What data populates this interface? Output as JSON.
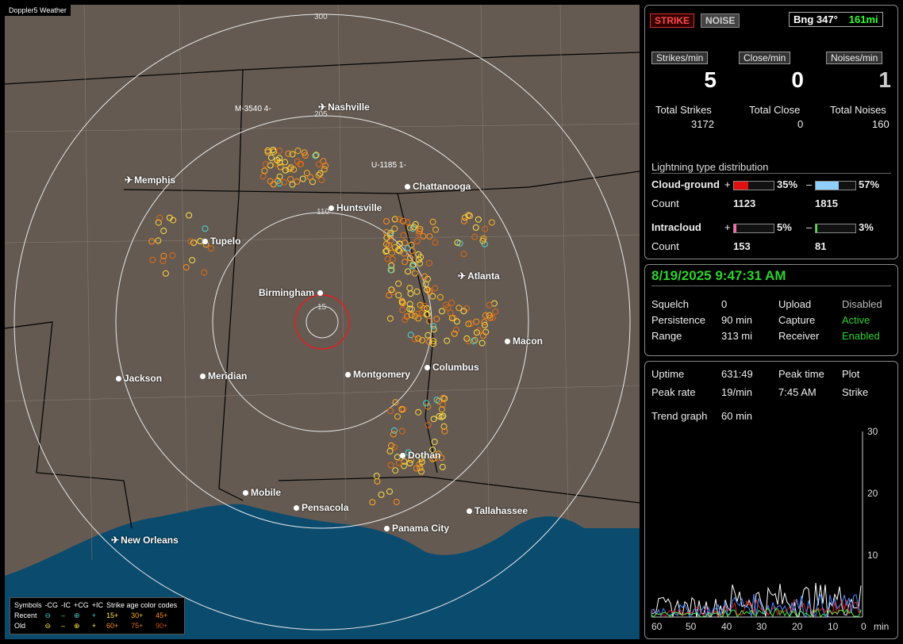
{
  "map": {
    "title": "Doppler5 Weather",
    "ring_labels": [
      "300",
      "205",
      "110",
      "15"
    ],
    "markers": [
      "M-3540 4-",
      "U-1185 1-"
    ],
    "cities": [
      {
        "name": "Nashville",
        "kind": "plane"
      },
      {
        "name": "Memphis",
        "kind": "plane"
      },
      {
        "name": "Chattanooga",
        "kind": "dot"
      },
      {
        "name": "Huntsville",
        "kind": "dot"
      },
      {
        "name": "Tupelo",
        "kind": "dot"
      },
      {
        "name": "Atlanta",
        "kind": "plane"
      },
      {
        "name": "Birmingham",
        "kind": "dot"
      },
      {
        "name": "Macon",
        "kind": "dot"
      },
      {
        "name": "Jackson",
        "kind": "dot"
      },
      {
        "name": "Meridian",
        "kind": "dot"
      },
      {
        "name": "Montgomery",
        "kind": "dot"
      },
      {
        "name": "Columbus",
        "kind": "dot"
      },
      {
        "name": "Dothan",
        "kind": "dot"
      },
      {
        "name": "Mobile",
        "kind": "dot"
      },
      {
        "name": "Pensacola",
        "kind": "dot"
      },
      {
        "name": "Tallahassee",
        "kind": "dot"
      },
      {
        "name": "Panama City",
        "kind": "dot"
      },
      {
        "name": "New Orleans",
        "kind": "plane"
      }
    ],
    "legend": {
      "symbols_label": "Symbols",
      "headers": [
        "-CG",
        "-IC",
        "+CG",
        "+IC"
      ],
      "age_title": "Strike age color codes",
      "recent_label": "Recent",
      "old_label": "Old",
      "recent_ages": [
        "15+",
        "30+",
        "45+"
      ],
      "old_ages": [
        "60+",
        "75+",
        "90+"
      ]
    }
  },
  "status": {
    "strike_button": "STRIKE",
    "noise_button": "NOISE",
    "bearing": "Bng 347°",
    "distance": "161mi",
    "strikes_per_min_label": "Strikes/min",
    "close_per_min_label": "Close/min",
    "noises_per_min_label": "Noises/min",
    "strikes_per_min": "5",
    "close_per_min": "0",
    "noises_per_min": "1",
    "total_strikes_label": "Total Strikes",
    "total_close_label": "Total Close",
    "total_noises_label": "Total Noises",
    "total_strikes": "3172",
    "total_close": "0",
    "total_noises": "160",
    "distribution_title": "Lightning type distribution",
    "cg_label": "Cloud-ground",
    "ic_label": "Intracloud",
    "plus": "+",
    "minus": "–",
    "count_label": "Count",
    "cg_plus_pct": "35%",
    "cg_minus_pct": "57%",
    "cg_plus_count": "1123",
    "cg_minus_count": "1815",
    "ic_plus_pct": "5%",
    "ic_minus_pct": "3%",
    "ic_plus_count": "153",
    "ic_minus_count": "81",
    "cg_plus_frac": 0.35,
    "cg_minus_frac": 0.57,
    "ic_plus_frac": 0.05,
    "ic_minus_frac": 0.03
  },
  "settings": {
    "datetime": "8/19/2025 9:47:31 AM",
    "squelch_label": "Squelch",
    "squelch": "0",
    "persistence_label": "Persistence",
    "persistence": "90 min",
    "range_label": "Range",
    "range": "313 mi",
    "upload_label": "Upload",
    "upload": "Disabled",
    "capture_label": "Capture",
    "capture": "Active",
    "receiver_label": "Receiver",
    "receiver": "Enabled"
  },
  "trend": {
    "uptime_label": "Uptime",
    "uptime": "631:49",
    "peak_time_label": "Peak time",
    "peak_time": "7:45 AM",
    "plot_label": "Plot",
    "plot": "Strike",
    "peak_rate_label": "Peak rate",
    "peak_rate": "19/min",
    "trend_graph_label": "Trend graph",
    "trend_graph": "60 min",
    "y_ticks": [
      "30",
      "20",
      "10"
    ],
    "x_ticks": [
      "60",
      "50",
      "40",
      "30",
      "20",
      "10",
      "0"
    ],
    "x_unit": "min"
  },
  "colors": {
    "accent_green": "#2fd12f",
    "strike_red": "#ff3030",
    "ic_blue": "#8ecfff"
  }
}
